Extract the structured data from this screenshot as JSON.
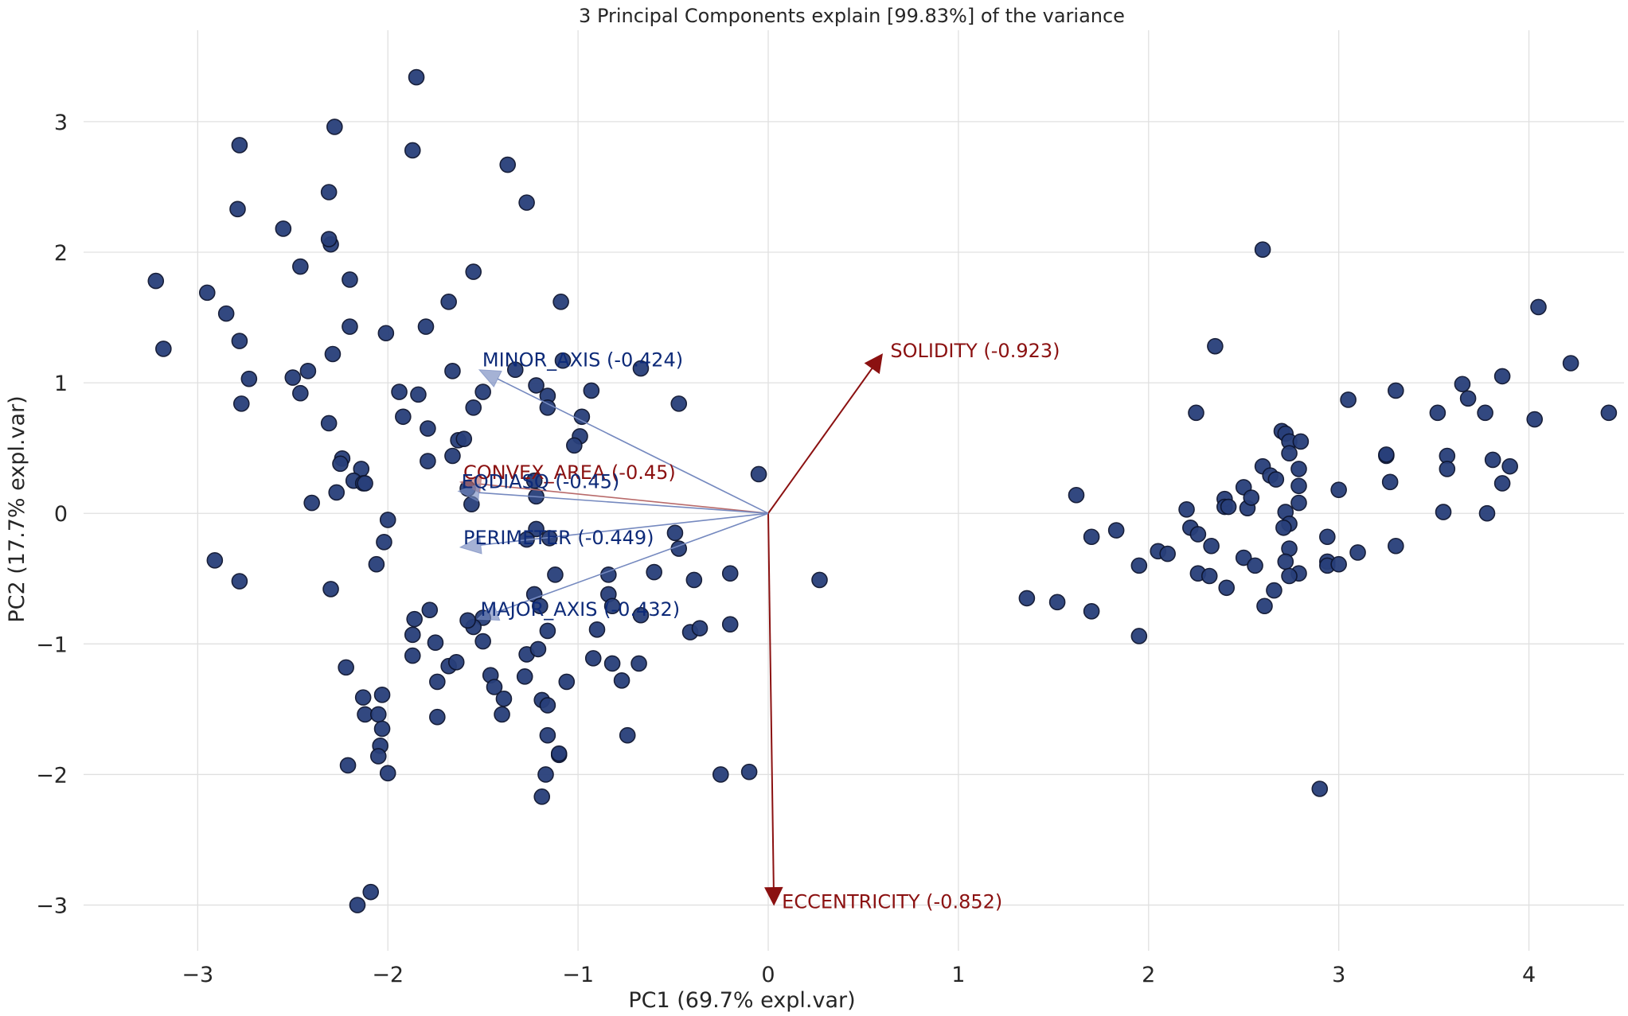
{
  "chart_data": {
    "type": "scatter",
    "title": "3 Principal Components explain [99.83%] of the variance",
    "xlabel": "PC1 (69.7% expl.var)",
    "ylabel": "PC2 (17.7% expl.var)",
    "xlim": [
      -3.6,
      4.5
    ],
    "ylim": [
      -3.35,
      3.7
    ],
    "xticks": [
      -3,
      -2,
      -1,
      0,
      1,
      2,
      3,
      4
    ],
    "yticks": [
      -3,
      -2,
      -1,
      0,
      1,
      2,
      3
    ],
    "xtick_labels": [
      "−3",
      "−2",
      "−1",
      "0",
      "1",
      "2",
      "3",
      "4"
    ],
    "ytick_labels": [
      "−3",
      "−2",
      "−1",
      "0",
      "1",
      "2",
      "3"
    ],
    "grid": true,
    "point_color": "#283f7a",
    "points": [
      [
        -3.22,
        1.78
      ],
      [
        -3.18,
        1.26
      ],
      [
        -2.95,
        1.69
      ],
      [
        -2.85,
        1.53
      ],
      [
        -2.78,
        2.82
      ],
      [
        -2.79,
        2.33
      ],
      [
        -2.78,
        1.32
      ],
      [
        -2.73,
        1.03
      ],
      [
        -2.77,
        0.84
      ],
      [
        -2.55,
        2.18
      ],
      [
        -2.5,
        1.04
      ],
      [
        -2.46,
        1.89
      ],
      [
        -2.42,
        1.09
      ],
      [
        -2.46,
        0.92
      ],
      [
        -2.28,
        2.96
      ],
      [
        -2.31,
        2.46
      ],
      [
        -2.3,
        2.06
      ],
      [
        -2.31,
        2.1
      ],
      [
        -2.2,
        1.79
      ],
      [
        -2.2,
        1.43
      ],
      [
        -2.29,
        1.22
      ],
      [
        -2.31,
        0.69
      ],
      [
        -2.24,
        0.42
      ],
      [
        -2.25,
        0.38
      ],
      [
        -2.14,
        0.34
      ],
      [
        -2.18,
        0.25
      ],
      [
        -2.13,
        0.23
      ],
      [
        -2.12,
        0.23
      ],
      [
        -2.27,
        0.16
      ],
      [
        -2.4,
        0.08
      ],
      [
        -2.91,
        -0.36
      ],
      [
        -2.78,
        -0.52
      ],
      [
        -2.3,
        -0.58
      ],
      [
        -2.01,
        1.38
      ],
      [
        -1.94,
        0.93
      ],
      [
        -1.92,
        0.74
      ],
      [
        -1.84,
        0.91
      ],
      [
        -1.79,
        0.65
      ],
      [
        -1.79,
        0.4
      ],
      [
        -1.85,
        3.34
      ],
      [
        -1.87,
        2.78
      ],
      [
        -1.8,
        1.43
      ],
      [
        -1.68,
        1.62
      ],
      [
        -1.66,
        1.09
      ],
      [
        -1.66,
        0.44
      ],
      [
        -1.63,
        0.56
      ],
      [
        -1.6,
        0.57
      ],
      [
        -1.55,
        1.85
      ],
      [
        -1.55,
        0.81
      ],
      [
        -1.5,
        0.93
      ],
      [
        -1.58,
        0.19
      ],
      [
        -1.56,
        0.07
      ],
      [
        -2.0,
        -0.05
      ],
      [
        -2.02,
        -0.22
      ],
      [
        -2.06,
        -0.39
      ],
      [
        -1.86,
        -0.81
      ],
      [
        -1.87,
        -0.93
      ],
      [
        -1.78,
        -0.74
      ],
      [
        -1.75,
        -0.99
      ],
      [
        -1.87,
        -1.09
      ],
      [
        -1.68,
        -1.17
      ],
      [
        -1.64,
        -1.14
      ],
      [
        -1.74,
        -1.29
      ],
      [
        -1.74,
        -1.56
      ],
      [
        -2.22,
        -1.18
      ],
      [
        -2.13,
        -1.41
      ],
      [
        -2.12,
        -1.54
      ],
      [
        -2.05,
        -1.54
      ],
      [
        -2.03,
        -1.39
      ],
      [
        -2.03,
        -1.65
      ],
      [
        -2.04,
        -1.78
      ],
      [
        -2.05,
        -1.86
      ],
      [
        -2.21,
        -1.93
      ],
      [
        -2.0,
        -1.99
      ],
      [
        -2.09,
        -2.9
      ],
      [
        -2.16,
        -3.0
      ],
      [
        -1.37,
        2.67
      ],
      [
        -1.27,
        2.38
      ],
      [
        -1.09,
        1.62
      ],
      [
        -1.33,
        1.1
      ],
      [
        -1.08,
        1.17
      ],
      [
        -1.22,
        0.98
      ],
      [
        -1.16,
        0.9
      ],
      [
        -1.16,
        0.81
      ],
      [
        -0.98,
        0.74
      ],
      [
        -0.99,
        0.59
      ],
      [
        -1.02,
        0.52
      ],
      [
        -0.93,
        0.94
      ],
      [
        -0.67,
        1.11
      ],
      [
        -0.47,
        0.84
      ],
      [
        -1.23,
        0.25
      ],
      [
        -1.22,
        0.13
      ],
      [
        -1.22,
        -0.12
      ],
      [
        -1.27,
        -0.2
      ],
      [
        -1.15,
        -0.19
      ],
      [
        -1.12,
        -0.47
      ],
      [
        -1.23,
        -0.62
      ],
      [
        -1.2,
        -0.71
      ],
      [
        -1.16,
        -0.9
      ],
      [
        -1.27,
        -1.08
      ],
      [
        -1.21,
        -1.04
      ],
      [
        -1.28,
        -1.25
      ],
      [
        -1.06,
        -1.29
      ],
      [
        -1.46,
        -1.24
      ],
      [
        -1.44,
        -1.33
      ],
      [
        -1.39,
        -1.42
      ],
      [
        -1.4,
        -1.54
      ],
      [
        -1.19,
        -1.43
      ],
      [
        -1.16,
        -1.47
      ],
      [
        -1.16,
        -1.7
      ],
      [
        -1.1,
        -1.85
      ],
      [
        -1.1,
        -1.84
      ],
      [
        -1.17,
        -2.0
      ],
      [
        -1.19,
        -2.17
      ],
      [
        -1.5,
        -0.8
      ],
      [
        -1.55,
        -0.87
      ],
      [
        -1.5,
        -0.98
      ],
      [
        -1.58,
        -0.82
      ],
      [
        -0.92,
        -1.11
      ],
      [
        -0.82,
        -1.15
      ],
      [
        -0.68,
        -1.15
      ],
      [
        -0.77,
        -1.28
      ],
      [
        -0.74,
        -1.7
      ],
      [
        -0.9,
        -0.89
      ],
      [
        -0.84,
        -0.47
      ],
      [
        -0.84,
        -0.62
      ],
      [
        -0.82,
        -0.71
      ],
      [
        -0.67,
        -0.78
      ],
      [
        -0.49,
        -0.15
      ],
      [
        -0.47,
        -0.27
      ],
      [
        -0.6,
        -0.45
      ],
      [
        -0.39,
        -0.51
      ],
      [
        -0.41,
        -0.91
      ],
      [
        -0.36,
        -0.88
      ],
      [
        -0.2,
        -0.46
      ],
      [
        -0.2,
        -0.85
      ],
      [
        -0.25,
        -2.0
      ],
      [
        -0.1,
        -1.98
      ],
      [
        -0.05,
        0.3
      ],
      [
        0.27,
        -0.51
      ],
      [
        1.36,
        -0.65
      ],
      [
        1.52,
        -0.68
      ],
      [
        1.62,
        0.14
      ],
      [
        1.7,
        -0.18
      ],
      [
        1.7,
        -0.75
      ],
      [
        1.83,
        -0.13
      ],
      [
        1.95,
        -0.4
      ],
      [
        2.05,
        -0.29
      ],
      [
        2.1,
        -0.31
      ],
      [
        1.95,
        -0.94
      ],
      [
        2.2,
        0.03
      ],
      [
        2.22,
        -0.11
      ],
      [
        2.26,
        -0.16
      ],
      [
        2.25,
        0.77
      ],
      [
        2.35,
        1.28
      ],
      [
        2.26,
        -0.46
      ],
      [
        2.32,
        -0.48
      ],
      [
        2.33,
        -0.25
      ],
      [
        2.4,
        0.11
      ],
      [
        2.4,
        0.05
      ],
      [
        2.42,
        0.05
      ],
      [
        2.41,
        -0.57
      ],
      [
        2.5,
        0.2
      ],
      [
        2.5,
        -0.34
      ],
      [
        2.52,
        0.04
      ],
      [
        2.54,
        0.12
      ],
      [
        2.56,
        -0.4
      ],
      [
        2.6,
        0.36
      ],
      [
        2.6,
        2.02
      ],
      [
        2.64,
        0.29
      ],
      [
        2.67,
        0.26
      ],
      [
        2.7,
        0.63
      ],
      [
        2.72,
        0.61
      ],
      [
        2.74,
        0.55
      ],
      [
        2.74,
        0.46
      ],
      [
        2.8,
        0.55
      ],
      [
        2.79,
        0.34
      ],
      [
        2.79,
        0.21
      ],
      [
        2.79,
        0.08
      ],
      [
        2.72,
        0.01
      ],
      [
        2.74,
        -0.08
      ],
      [
        2.71,
        -0.11
      ],
      [
        2.74,
        -0.27
      ],
      [
        2.72,
        -0.37
      ],
      [
        2.79,
        -0.46
      ],
      [
        2.74,
        -0.48
      ],
      [
        2.66,
        -0.59
      ],
      [
        2.61,
        -0.71
      ],
      [
        2.94,
        -0.18
      ],
      [
        2.94,
        -0.37
      ],
      [
        2.94,
        -0.4
      ],
      [
        3.0,
        -0.39
      ],
      [
        3.1,
        -0.3
      ],
      [
        2.9,
        -2.11
      ],
      [
        3.0,
        0.18
      ],
      [
        3.05,
        0.87
      ],
      [
        3.25,
        0.44
      ],
      [
        3.25,
        0.45
      ],
      [
        3.27,
        0.24
      ],
      [
        3.3,
        0.94
      ],
      [
        3.3,
        -0.25
      ],
      [
        3.52,
        0.77
      ],
      [
        3.57,
        0.44
      ],
      [
        3.57,
        0.34
      ],
      [
        3.55,
        0.01
      ],
      [
        3.65,
        0.99
      ],
      [
        3.68,
        0.88
      ],
      [
        3.77,
        0.77
      ],
      [
        3.78,
        0.0
      ],
      [
        3.81,
        0.41
      ],
      [
        3.86,
        1.05
      ],
      [
        3.86,
        0.23
      ],
      [
        3.9,
        0.36
      ],
      [
        4.03,
        0.72
      ],
      [
        4.05,
        1.58
      ],
      [
        4.22,
        1.15
      ],
      [
        4.42,
        0.77
      ]
    ],
    "loadings": [
      {
        "label": "SOLIDITY (-0.923)",
        "x": 0.6,
        "y": 1.22,
        "color": "#8b1111",
        "head": "large"
      },
      {
        "label": "ECCENTRICITY (-0.852)",
        "x": 0.03,
        "y": -3.0,
        "color": "#8b1111",
        "head": "large"
      },
      {
        "label": "MINOR_AXIS (-0.424)",
        "x": -1.52,
        "y": 1.1,
        "color": "#7589bf",
        "head": "small"
      },
      {
        "label": "CONVEX_AREA (-0.45)",
        "x": -1.62,
        "y": 0.24,
        "color": "#b86a6a",
        "head": "small"
      },
      {
        "label": "EQDIASQ (-0.45)",
        "x": -1.63,
        "y": 0.17,
        "color": "#7589bf",
        "head": "small"
      },
      {
        "label": "PERIMETER (-0.449)",
        "x": -1.62,
        "y": -0.26,
        "color": "#7589bf",
        "head": "small"
      },
      {
        "label": "MAJOR_AXIS (-0.432)",
        "x": -1.53,
        "y": -0.81,
        "color": "#7589bf",
        "head": "small"
      }
    ],
    "loading_label_colors": {
      "red": "#8b1111",
      "blue": "#0d2a78"
    }
  }
}
